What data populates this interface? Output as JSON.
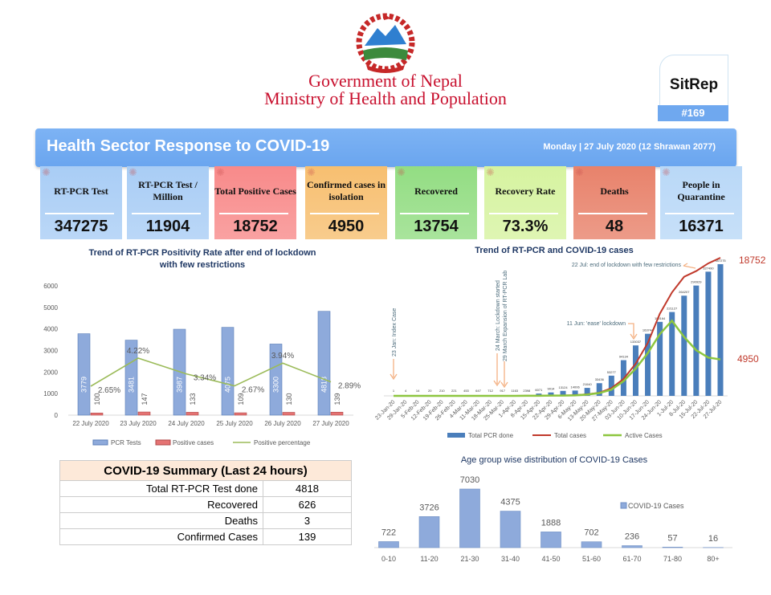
{
  "header": {
    "org_line1": "Government of Nepal",
    "org_line2": "Ministry of Health and Population",
    "sitrep_label": "SitRep",
    "sitrep_number": "#169",
    "title": "Health Sector Response to COVID-19",
    "date": "Monday | 27 July 2020 (12 Shrawan 2077)"
  },
  "cards": [
    {
      "label": "RT-PCR Test",
      "value": "347275",
      "color": "#a9cdf5"
    },
    {
      "label": "RT-PCR Test / Million",
      "value": "11904",
      "color": "#a9cdf5"
    },
    {
      "label": "Total Positive Cases",
      "value": "18752",
      "color": "#f88a8a"
    },
    {
      "label": "Confirmed cases in isolation",
      "value": "4950",
      "color": "#f7bf70"
    },
    {
      "label": "Recovered",
      "value": "13754",
      "color": "#93dd83"
    },
    {
      "label": "Recovery Rate",
      "value": "73.3%",
      "color": "#d6f3a0"
    },
    {
      "label": "Deaths",
      "value": "48",
      "color": "#e8826b"
    },
    {
      "label": "People in Quarantine",
      "value": "16371",
      "color": "#b9d8f7"
    }
  ],
  "summary": {
    "title": "COVID-19 Summary (Last 24 hours)",
    "rows": [
      {
        "label": "Total RT-PCR Test done",
        "value": "4818"
      },
      {
        "label": "Recovered",
        "value": "626"
      },
      {
        "label": "Deaths",
        "value": "3"
      },
      {
        "label": "Confirmed Cases",
        "value": "139"
      }
    ]
  },
  "chart_data": [
    {
      "type": "bar",
      "title": "Trend of RT-PCR Positivity Rate after end of lockdown with few restrictions",
      "categories": [
        "22 July 2020",
        "23 July 2020",
        "24 July 2020",
        "25 July 2020",
        "26 July 2020",
        "27 July 2020"
      ],
      "yticks": [
        "0",
        "1000",
        "2000",
        "3000",
        "4000",
        "5000",
        "6000"
      ],
      "ylim": [
        0,
        6000
      ],
      "series": [
        {
          "name": "PCR Tests",
          "type": "bar",
          "color": "#8eaadb",
          "values": [
            3779,
            3481,
            3987,
            4075,
            3300,
            4818
          ]
        },
        {
          "name": "Positive cases",
          "type": "bar",
          "color": "#e57373",
          "values": [
            100,
            147,
            133,
            109,
            130,
            139
          ]
        },
        {
          "name": "Positive percentage",
          "type": "line",
          "color": "#9bbb59",
          "values": [
            2.65,
            4.22,
            3.34,
            2.67,
            3.94,
            2.89
          ],
          "labels": [
            "2.65%",
            "4.22%",
            "3.34%",
            "2.67%",
            "3.94%",
            "2.89%"
          ]
        }
      ],
      "legend": "bottom"
    },
    {
      "type": "bar",
      "title": "Trend of RT-PCR and COVID-19 cases",
      "categories": [
        "23-Jan-20",
        "29-Jan-20",
        "5-Feb-20",
        "12-Feb-20",
        "19-Feb-20",
        "26-Feb-20",
        "4-Mar-20",
        "11-Mar-20",
        "18-Mar-20",
        "25-Mar-20",
        "1-Apr-20",
        "8-Apr-20",
        "15-Apr-20",
        "22-Apr-20",
        "29-Apr-20",
        "6-May-20",
        "13-May-20",
        "20-May-20",
        "27-May-20",
        "03-Jun-20",
        "10-Jun-20",
        "17-Jun-20",
        "24-Jun-20",
        "1-Jul-20",
        "8-Jul-20",
        "15-Jul-20",
        "22-Jul-20",
        "27-Jul-20"
      ],
      "series": [
        {
          "name": "Total PCR done",
          "type": "bar",
          "color": "#4a7ebb",
          "values": [
            1,
            4,
            14,
            20,
            210,
            221,
            453,
            647,
            712,
            917,
            1163,
            2398,
            6071,
            9014,
            13124,
            14006,
            21040,
            33436,
            53277,
            94134,
            133037,
            163744,
            195164,
            221127,
            264207,
            290929,
            327490,
            347275
          ]
        },
        {
          "name": "Total  cases",
          "type": "line",
          "color": "#c0392b",
          "values": [
            1,
            1,
            1,
            1,
            1,
            1,
            1,
            1,
            1,
            3,
            5,
            9,
            16,
            45,
            57,
            99,
            217,
            427,
            1042,
            2300,
            4364,
            7177,
            11162,
            14046,
            16168,
            16945,
            17994,
            18752
          ]
        },
        {
          "name": "Active Cases",
          "type": "line",
          "color": "#8dc63f",
          "values": [
            1,
            1,
            1,
            1,
            1,
            1,
            1,
            1,
            1,
            3,
            5,
            8,
            14,
            40,
            40,
            70,
            180,
            380,
            850,
            2000,
            3700,
            5800,
            8400,
            10200,
            8000,
            6200,
            5200,
            4950
          ]
        }
      ],
      "annotations": [
        "23 Jan: Index Case",
        "24 March: Lockdown started",
        "29 March Expansion of RT-PCR Lab",
        "11 Jun: 'ease' lockdown",
        "22 Jul: end of lockdown with few restrictions"
      ],
      "end_labels": {
        "total": "18752",
        "active": "4950"
      },
      "legend": "bottom"
    },
    {
      "type": "bar",
      "title": "Age group wise distribution of COVID-19 Cases",
      "categories": [
        "0-10",
        "11-20",
        "21-30",
        "31-40",
        "41-50",
        "51-60",
        "61-70",
        "71-80",
        "80+"
      ],
      "series": [
        {
          "name": "COVID-19 Cases",
          "color": "#8eaadb",
          "values": [
            722,
            3726,
            7030,
            4375,
            1888,
            702,
            236,
            57,
            16
          ]
        }
      ],
      "legend": "right"
    }
  ]
}
